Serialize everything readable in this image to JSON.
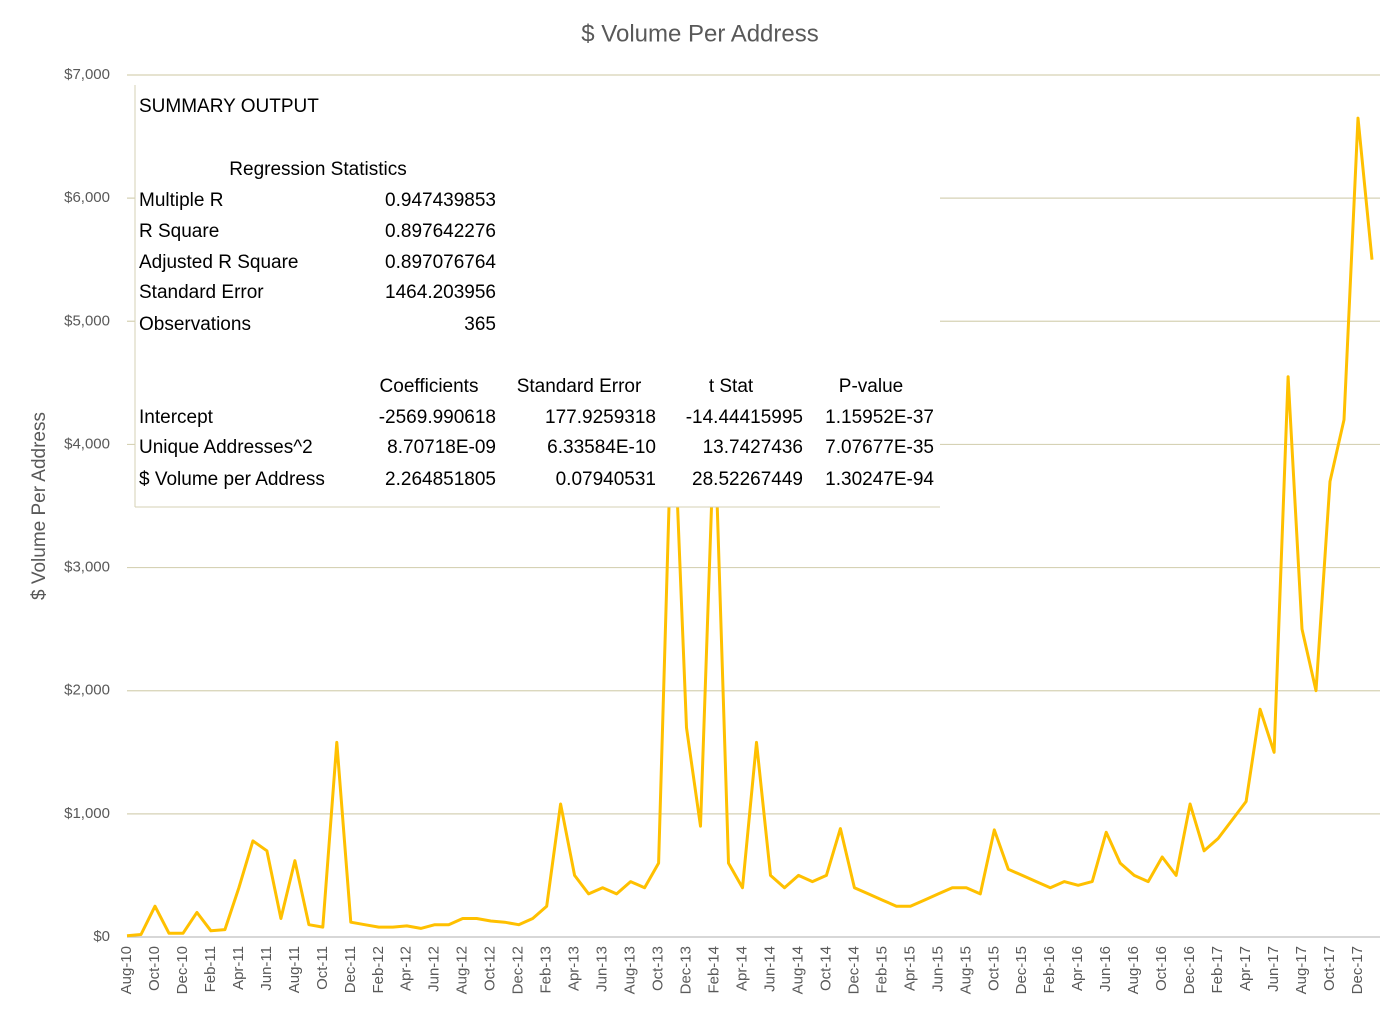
{
  "chart_data": {
    "type": "line",
    "title": "$ Volume Per Address",
    "y_label": "$ Volume Per Address",
    "categories": [
      "Aug-10",
      null,
      "Oct-10",
      null,
      "Dec-10",
      null,
      "Feb-11",
      null,
      "Apr-11",
      null,
      "Jun-11",
      null,
      "Aug-11",
      null,
      "Oct-11",
      null,
      "Dec-11",
      null,
      "Feb-12",
      null,
      "Apr-12",
      null,
      "Jun-12",
      null,
      "Aug-12",
      null,
      "Oct-12",
      null,
      "Dec-12",
      null,
      "Feb-13",
      null,
      "Apr-13",
      null,
      "Jun-13",
      null,
      "Aug-13",
      null,
      "Oct-13",
      null,
      "Dec-13",
      null,
      "Feb-14",
      null,
      "Apr-14",
      null,
      "Jun-14",
      null,
      "Aug-14",
      null,
      "Oct-14",
      null,
      "Dec-14",
      null,
      "Feb-15",
      null,
      "Apr-15",
      null,
      "Jun-15",
      null,
      "Aug-15",
      null,
      "Oct-15",
      null,
      "Dec-15",
      null,
      "Feb-16",
      null,
      "Apr-16",
      null,
      "Jun-16",
      null,
      "Aug-16",
      null,
      "Oct-16",
      null,
      "Dec-16",
      null,
      "Feb-17",
      null,
      "Apr-17",
      null,
      "Jun-17",
      null,
      "Aug-17",
      null,
      "Oct-17",
      null,
      "Dec-17",
      null
    ],
    "values": [
      10,
      20,
      250,
      30,
      30,
      200,
      50,
      60,
      400,
      780,
      700,
      150,
      620,
      100,
      80,
      1580,
      120,
      100,
      80,
      80,
      90,
      70,
      100,
      100,
      150,
      150,
      130,
      120,
      100,
      150,
      250,
      1080,
      500,
      350,
      400,
      350,
      450,
      400,
      600,
      4500,
      1700,
      900,
      4200,
      600,
      400,
      1580,
      500,
      400,
      500,
      450,
      500,
      880,
      400,
      350,
      300,
      250,
      250,
      300,
      350,
      400,
      400,
      350,
      870,
      550,
      500,
      450,
      400,
      450,
      420,
      450,
      850,
      600,
      500,
      450,
      650,
      500,
      1080,
      700,
      800,
      950,
      1100,
      1850,
      1500,
      4550,
      2500,
      2000,
      3700,
      4200,
      6650,
      5500
    ],
    "color": "#ffc000",
    "ylim": [
      0,
      7000
    ],
    "yticks": [
      {
        "value": 0,
        "label": "$0"
      },
      {
        "value": 1000,
        "label": "$1,000"
      },
      {
        "value": 2000,
        "label": "$2,000"
      },
      {
        "value": 3000,
        "label": "$3,000"
      },
      {
        "value": 4000,
        "label": "$4,000"
      },
      {
        "value": 5000,
        "label": "$5,000"
      },
      {
        "value": 6000,
        "label": "$6,000"
      },
      {
        "value": 7000,
        "label": "$7,000"
      }
    ],
    "grid": true,
    "summary_table": {
      "title": "SUMMARY OUTPUT",
      "section_title": "Regression Statistics",
      "stats": [
        [
          "Multiple R",
          "0.947439853"
        ],
        [
          "R Square",
          "0.897642276"
        ],
        [
          "Adjusted R Square",
          "0.897076764"
        ],
        [
          "Standard Error",
          "1464.203956"
        ],
        [
          "Observations",
          "365"
        ]
      ],
      "header": [
        "Coefficients",
        "Standard Error",
        "t Stat",
        "P-value"
      ],
      "rows": [
        [
          "Intercept",
          "-2569.990618",
          "177.9259318",
          "-14.44415995",
          "1.15952E-37"
        ],
        [
          "Unique Addresses^2",
          "8.70718E-09",
          "6.33584E-10",
          "13.7427436",
          "7.07677E-35"
        ],
        [
          "$ Volume per Address",
          "2.264851805",
          "0.07940531",
          "28.52267449",
          "1.30247E-94"
        ]
      ]
    }
  }
}
